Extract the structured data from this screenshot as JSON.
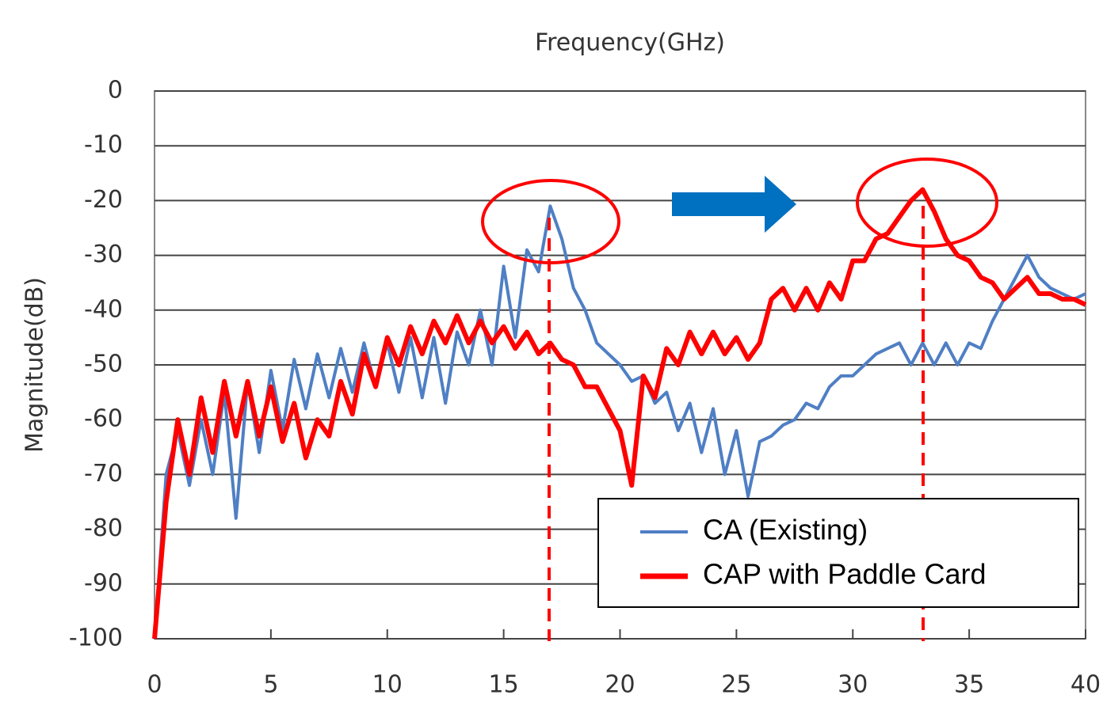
{
  "chart_data": {
    "type": "line",
    "title": "Frequency(GHz)",
    "y_label": "Magnitude(dB)",
    "x": [
      0,
      0.5,
      1,
      1.5,
      2,
      2.5,
      3,
      3.5,
      4,
      4.5,
      5,
      5.5,
      6,
      6.5,
      7,
      7.5,
      8,
      8.5,
      9,
      9.5,
      10,
      10.5,
      11,
      11.5,
      12,
      12.5,
      13,
      13.5,
      14,
      14.5,
      15,
      15.5,
      16,
      16.5,
      17,
      17.5,
      18,
      18.5,
      19,
      19.5,
      20,
      20.5,
      21,
      21.5,
      22,
      22.5,
      23,
      23.5,
      24,
      24.5,
      25,
      25.5,
      26,
      26.5,
      27,
      27.5,
      28,
      28.5,
      29,
      29.5,
      30,
      30.5,
      31,
      31.5,
      32,
      32.5,
      33,
      33.5,
      34,
      34.5,
      35,
      35.5,
      36,
      36.5,
      37,
      37.5,
      38,
      38.5,
      39,
      39.5,
      40
    ],
    "series": [
      {
        "name": "CA (Existing)",
        "color": "#4f7fc4",
        "values": [
          -100,
          -70,
          -62,
          -72,
          -60,
          -70,
          -55,
          -78,
          -53,
          -66,
          -51,
          -62,
          -49,
          -58,
          -48,
          -56,
          -47,
          -55,
          -46,
          -54,
          -46,
          -55,
          -45,
          -56,
          -45,
          -57,
          -44,
          -50,
          -40,
          -50,
          -32,
          -45,
          -29,
          -33,
          -21,
          -27,
          -36,
          -40,
          -46,
          -48,
          -50,
          -53,
          -52,
          -57,
          -55,
          -62,
          -57,
          -66,
          -58,
          -70,
          -62,
          -74,
          -64,
          -63,
          -61,
          -60,
          -57,
          -58,
          -54,
          -52,
          -52,
          -50,
          -48,
          -47,
          -46,
          -50,
          -46,
          -50,
          -46,
          -50,
          -46,
          -47,
          -42,
          -38,
          -34,
          -30,
          -34,
          -36,
          -37,
          -38,
          -37
        ]
      },
      {
        "name": "CAP with Paddle Card",
        "color": "#ff0000",
        "values": [
          -100,
          -75,
          -60,
          -70,
          -56,
          -66,
          -53,
          -63,
          -53,
          -63,
          -54,
          -64,
          -57,
          -67,
          -60,
          -63,
          -53,
          -59,
          -48,
          -54,
          -45,
          -50,
          -43,
          -48,
          -42,
          -46,
          -41,
          -46,
          -42,
          -46,
          -43,
          -47,
          -44,
          -48,
          -46,
          -49,
          -50,
          -54,
          -54,
          -58,
          -62,
          -72,
          -52,
          -56,
          -47,
          -50,
          -44,
          -48,
          -44,
          -48,
          -45,
          -49,
          -46,
          -38,
          -36,
          -40,
          -36,
          -40,
          -35,
          -38,
          -31,
          -31,
          -27,
          -26,
          -23,
          -20,
          -18,
          -22,
          -27,
          -30,
          -31,
          -34,
          -35,
          -38,
          -36,
          -34,
          -37,
          -37,
          -38,
          -38,
          -39
        ]
      }
    ],
    "xlim": [
      0,
      40
    ],
    "xticks": [
      0,
      5,
      10,
      15,
      20,
      25,
      30,
      35,
      40
    ],
    "ylim": [
      -100,
      0
    ],
    "yticks": [
      0,
      -10,
      -20,
      -30,
      -40,
      -50,
      -60,
      -70,
      -80,
      -90,
      -100
    ],
    "grid": true,
    "legend": "lower right"
  }
}
